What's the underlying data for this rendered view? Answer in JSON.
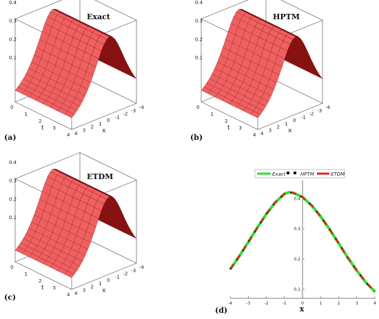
{
  "panels": [
    {
      "label": "(a)",
      "title": "Exact"
    },
    {
      "label": "(b)",
      "title": "HPTM"
    },
    {
      "label": "(c)",
      "title": "ETDM"
    }
  ],
  "surface_axes": {
    "t_label": "t",
    "x_label": "x",
    "z_ticks": [
      "0.1",
      "0.2",
      "0.3",
      "0.4"
    ],
    "t_ticks": [
      "0",
      "1",
      "2",
      "3",
      "4"
    ],
    "x_ticks": [
      "4",
      "3",
      "2",
      "1",
      "0",
      "-1",
      "-2",
      "-3",
      "-4"
    ]
  },
  "colors": {
    "surface_light": "#f06060",
    "surface_dark": "#8a1010",
    "exact": "#33dd33",
    "hptm": "#111111",
    "etdm": "#dd2222"
  },
  "chart_data": {
    "label": "(d)",
    "type": "line",
    "xlabel": "x",
    "ylabel": "",
    "xlim": [
      -4,
      4
    ],
    "ylim": [
      0.07,
      0.46
    ],
    "x_ticks": [
      "-4",
      "-3",
      "-2",
      "-1",
      "0",
      "1",
      "2",
      "3",
      "4"
    ],
    "y_ticks": [
      "0.1",
      "0.2",
      "0.3",
      "0.4"
    ],
    "legend_position": "top",
    "series": [
      {
        "name": "Exact",
        "style": "solid"
      },
      {
        "name": "HPTM",
        "style": "dotted"
      },
      {
        "name": "ETDM",
        "style": "dashed"
      }
    ],
    "x": [
      -4,
      -3.5,
      -3,
      -2.5,
      -2,
      -1.5,
      -1,
      -0.75,
      -0.5,
      0,
      0.5,
      1,
      1.5,
      2,
      2.5,
      3,
      3.5,
      4
    ],
    "y": [
      0.166,
      0.209,
      0.256,
      0.304,
      0.349,
      0.388,
      0.416,
      0.421,
      0.419,
      0.405,
      0.378,
      0.341,
      0.298,
      0.252,
      0.205,
      0.162,
      0.123,
      0.092
    ]
  }
}
